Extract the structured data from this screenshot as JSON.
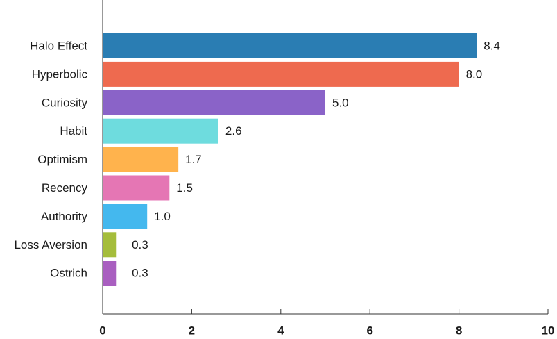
{
  "chart_data": {
    "type": "bar",
    "orientation": "horizontal",
    "categories": [
      "Halo Effect",
      "Hyperbolic",
      "Curiosity",
      "Habit",
      "Optimism",
      "Recency",
      "Authority",
      "Loss Aversion",
      "Ostrich"
    ],
    "values": [
      8.4,
      8.0,
      5.0,
      2.6,
      1.7,
      1.5,
      1.0,
      0.3,
      0.3
    ],
    "value_labels": [
      "8.4",
      "8.0",
      "5.0",
      "2.6",
      "1.7",
      "1.5",
      "1.0",
      "0.3",
      "0.3"
    ],
    "colors": [
      "#2a7db3",
      "#ee6a4f",
      "#8a63c8",
      "#6edcde",
      "#ffb34d",
      "#e576b4",
      "#44b8ee",
      "#a5bd3b",
      "#a95fc0"
    ],
    "xlim": [
      0,
      10
    ],
    "xticks": [
      0,
      2,
      4,
      6,
      8,
      10
    ],
    "xtick_labels": [
      "0",
      "2",
      "4",
      "6",
      "8",
      "10"
    ],
    "title": "",
    "xlabel": "",
    "ylabel": "",
    "grid": false,
    "legend": "none"
  }
}
